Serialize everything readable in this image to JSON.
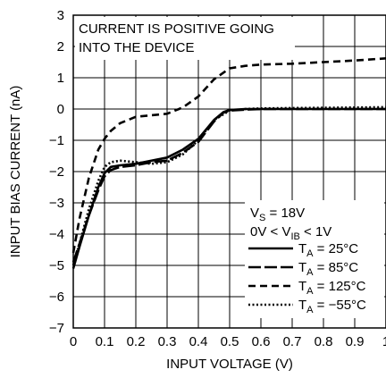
{
  "chart_data": {
    "type": "line",
    "xlabel": "INPUT VOLTAGE (V)",
    "ylabel": "INPUT BIAS CURRENT (nA)",
    "xlim": [
      0,
      1
    ],
    "ylim": [
      -7,
      3
    ],
    "grid": true,
    "x_ticks": [
      "0",
      "0.1",
      "0.2",
      "0.3",
      "0.4",
      "0.5",
      "0.6",
      "0.7",
      "0.8",
      "0.9",
      "1"
    ],
    "y_ticks": [
      "3",
      "2",
      "1",
      "0",
      "−1",
      "−2",
      "−3",
      "−4",
      "−5",
      "−6",
      "−7"
    ],
    "annotation": {
      "line1": "CURRENT IS POSITIVE GOING",
      "line2": "INTO THE DEVICE"
    },
    "conditions": {
      "vs": {
        "main": "V",
        "sub": "S",
        "rest": " = 18V"
      },
      "vib": {
        "pre": "0V < V",
        "sub": "IB",
        "post": " < 1V"
      }
    },
    "series": [
      {
        "name": "T_A = 25°C",
        "label": {
          "main": "T",
          "sub": "A",
          "rest": " = 25°C"
        },
        "dash": "solid",
        "x": [
          0,
          0.02,
          0.05,
          0.08,
          0.1,
          0.12,
          0.15,
          0.2,
          0.25,
          0.3,
          0.35,
          0.4,
          0.45,
          0.48,
          0.5,
          0.55,
          0.6,
          0.7,
          0.8,
          0.9,
          1.0
        ],
        "y": [
          -5.1,
          -4.4,
          -3.4,
          -2.5,
          -2.05,
          -1.85,
          -1.8,
          -1.75,
          -1.65,
          -1.55,
          -1.3,
          -0.95,
          -0.35,
          -0.1,
          -0.03,
          0.0,
          0.0,
          0.0,
          0.0,
          0.0,
          0.0
        ]
      },
      {
        "name": "T_A = 85°C",
        "label": {
          "main": "T",
          "sub": "A",
          "rest": " = 85°C"
        },
        "dash": "long",
        "x": [
          0,
          0.02,
          0.05,
          0.08,
          0.1,
          0.12,
          0.15,
          0.2,
          0.25,
          0.3,
          0.35,
          0.4,
          0.45,
          0.48,
          0.5,
          0.55,
          0.6,
          0.7,
          0.8,
          0.9,
          1.0
        ],
        "y": [
          -4.9,
          -4.3,
          -3.4,
          -2.6,
          -2.15,
          -1.95,
          -1.85,
          -1.8,
          -1.7,
          -1.65,
          -1.4,
          -1.05,
          -0.4,
          -0.12,
          -0.05,
          -0.02,
          0.0,
          0.0,
          0.0,
          0.0,
          0.0
        ]
      },
      {
        "name": "T_A = 125°C",
        "label": {
          "main": "T",
          "sub": "A",
          "rest": " = 125°C"
        },
        "dash": "short",
        "x": [
          0,
          0.02,
          0.05,
          0.08,
          0.1,
          0.12,
          0.15,
          0.2,
          0.25,
          0.3,
          0.35,
          0.4,
          0.45,
          0.5,
          0.55,
          0.6,
          0.7,
          0.8,
          0.9,
          1.0
        ],
        "y": [
          -4.6,
          -3.5,
          -2.2,
          -1.3,
          -0.95,
          -0.7,
          -0.45,
          -0.25,
          -0.2,
          -0.15,
          0.05,
          0.4,
          0.95,
          1.3,
          1.38,
          1.42,
          1.45,
          1.5,
          1.55,
          1.62
        ]
      },
      {
        "name": "T_A = −55°C",
        "label": {
          "main": "T",
          "sub": "A",
          "rest": " = −55°C"
        },
        "dash": "dotted",
        "x": [
          0,
          0.02,
          0.05,
          0.08,
          0.1,
          0.12,
          0.15,
          0.2,
          0.25,
          0.3,
          0.35,
          0.4,
          0.45,
          0.5,
          0.55,
          0.6,
          0.7,
          0.8,
          0.9,
          1.0
        ],
        "y": [
          -5.0,
          -4.3,
          -3.2,
          -2.3,
          -1.85,
          -1.7,
          -1.65,
          -1.7,
          -1.75,
          -1.7,
          -1.45,
          -1.0,
          -0.35,
          -0.05,
          0.0,
          0.02,
          0.03,
          0.04,
          0.05,
          0.06
        ]
      }
    ]
  }
}
